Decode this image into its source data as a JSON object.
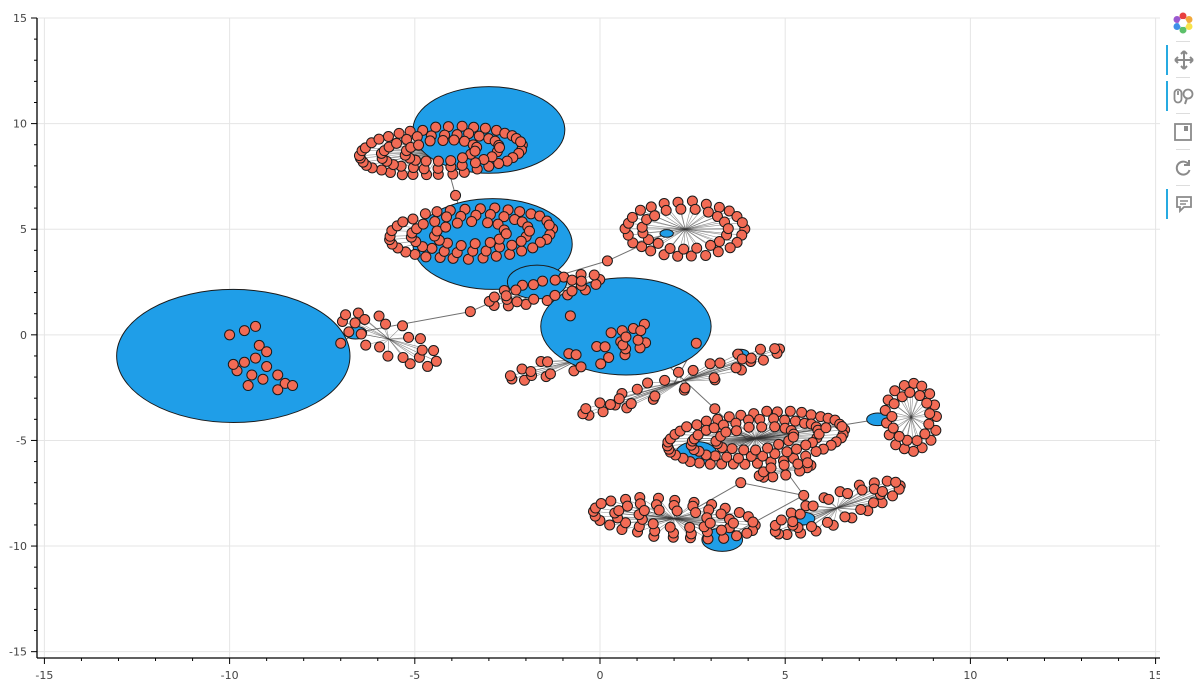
{
  "chart_data": {
    "type": "network-graph",
    "title": "",
    "xlabel": "",
    "ylabel": "",
    "xlim": [
      -15.2,
      15.2
    ],
    "ylim": [
      -15.3,
      15.0
    ],
    "x_ticks": [
      -15,
      -10,
      -5,
      0,
      5,
      10,
      15
    ],
    "y_ticks": [
      -15,
      -10,
      -5,
      0,
      5,
      10,
      15
    ],
    "grid": true,
    "node_fill_small": "#f26b55",
    "node_fill_hub": "#1f9ee8",
    "node_stroke": "#1a1a1a",
    "edge_color": "#333333",
    "hubs": [
      {
        "x": -9.9,
        "y": -1.0,
        "r": 3.15
      },
      {
        "x": -3.0,
        "y": 9.7,
        "r": 2.05
      },
      {
        "x": -2.9,
        "y": 4.3,
        "r": 2.15
      },
      {
        "x": 0.7,
        "y": 0.4,
        "r": 2.3
      },
      {
        "x": -1.7,
        "y": 2.5,
        "r": 0.8
      },
      {
        "x": 2.6,
        "y": -5.6,
        "r": 0.55
      },
      {
        "x": 3.3,
        "y": -9.7,
        "r": 0.55
      },
      {
        "x": 7.5,
        "y": -4.0,
        "r": 0.3
      },
      {
        "x": 5.5,
        "y": -8.7,
        "r": 0.3
      },
      {
        "x": 3.8,
        "y": -0.9,
        "r": 0.22
      },
      {
        "x": 1.8,
        "y": 4.8,
        "r": 0.18
      },
      {
        "x": -6.6,
        "y": 0.1,
        "r": 0.3
      }
    ],
    "clusters": [
      {
        "cx": -4.3,
        "cy": 8.7,
        "rx": 2.2,
        "ry": 1.1,
        "n": 85,
        "tilt": 4
      },
      {
        "cx": -3.5,
        "cy": 4.8,
        "rx": 2.2,
        "ry": 1.2,
        "n": 75,
        "tilt": 3
      },
      {
        "cx": -1.5,
        "cy": 2.1,
        "rx": 1.5,
        "ry": 0.5,
        "n": 28,
        "tilt": 12
      },
      {
        "cx": 2.3,
        "cy": 5.0,
        "rx": 1.6,
        "ry": 1.3,
        "n": 45,
        "tilt": 0
      },
      {
        "cx": -5.7,
        "cy": -0.2,
        "rx": 1.4,
        "ry": 0.8,
        "n": 22,
        "tilt": -25
      },
      {
        "cx": -0.6,
        "cy": -1.2,
        "rx": 1.9,
        "ry": 0.45,
        "n": 25,
        "tilt": 15
      },
      {
        "cx": 2.2,
        "cy": -2.2,
        "rx": 2.8,
        "ry": 0.45,
        "n": 35,
        "tilt": 18
      },
      {
        "cx": 4.2,
        "cy": -4.9,
        "rx": 2.4,
        "ry": 1.2,
        "n": 95,
        "tilt": 5
      },
      {
        "cx": 5.0,
        "cy": -6.4,
        "rx": 0.7,
        "ry": 0.22,
        "n": 12,
        "tilt": 12
      },
      {
        "cx": 8.4,
        "cy": -3.9,
        "rx": 0.7,
        "ry": 1.6,
        "n": 30,
        "tilt": 0
      },
      {
        "cx": 6.4,
        "cy": -8.2,
        "rx": 1.8,
        "ry": 0.7,
        "n": 38,
        "tilt": 20
      },
      {
        "cx": 2.0,
        "cy": -8.7,
        "rx": 2.2,
        "ry": 0.9,
        "n": 60,
        "tilt": -5
      }
    ],
    "bridge_nodes": [
      {
        "x": -7.0,
        "y": -0.4
      },
      {
        "x": -3.9,
        "y": 6.6
      },
      {
        "x": -3.5,
        "y": 1.1
      },
      {
        "x": 0.2,
        "y": 3.5
      },
      {
        "x": -0.8,
        "y": 0.9
      },
      {
        "x": 3.1,
        "y": -3.5
      },
      {
        "x": 6.1,
        "y": -4.4
      },
      {
        "x": 3.8,
        "y": -7.0
      },
      {
        "x": 5.5,
        "y": -7.6
      },
      {
        "x": 2.6,
        "y": -0.4
      }
    ],
    "edges": [
      [
        -9.9,
        -1.0,
        -7.0,
        -0.4
      ],
      [
        -7.0,
        -0.4,
        -6.6,
        0.1
      ],
      [
        -6.6,
        0.1,
        -3.5,
        1.1
      ],
      [
        -3.5,
        1.1,
        -1.7,
        2.5
      ],
      [
        -1.7,
        2.5,
        0.2,
        3.5
      ],
      [
        0.2,
        3.5,
        1.8,
        4.8
      ],
      [
        -3.9,
        6.6,
        -4.2,
        8.5
      ],
      [
        -3.9,
        6.6,
        -3.6,
        4.9
      ],
      [
        -1.7,
        2.5,
        -0.8,
        0.9
      ],
      [
        -0.8,
        0.9,
        0.7,
        0.4
      ],
      [
        0.7,
        0.4,
        3.1,
        -3.5
      ],
      [
        3.1,
        -3.5,
        4.0,
        -5.0
      ],
      [
        4.0,
        -5.0,
        6.1,
        -4.4
      ],
      [
        6.1,
        -4.4,
        7.5,
        -4.0
      ],
      [
        3.8,
        -7.0,
        5.5,
        -7.6
      ],
      [
        5.5,
        -7.6,
        3.3,
        -9.7
      ],
      [
        3.8,
        -7.0,
        2.6,
        -8.2
      ],
      [
        2.6,
        -0.4,
        2.0,
        -2.3
      ],
      [
        5.5,
        -7.6,
        5.0,
        -6.4
      ]
    ]
  },
  "toolbar": {
    "tools": [
      {
        "name": "bokeh-logo-icon",
        "active": false
      },
      {
        "name": "pan-tool-icon",
        "active": true
      },
      {
        "name": "wheel-zoom-tool-icon",
        "active": true
      },
      {
        "name": "save-tool-icon",
        "active": false
      },
      {
        "name": "reset-tool-icon",
        "active": false
      },
      {
        "name": "hover-tool-icon",
        "active": true
      }
    ]
  }
}
